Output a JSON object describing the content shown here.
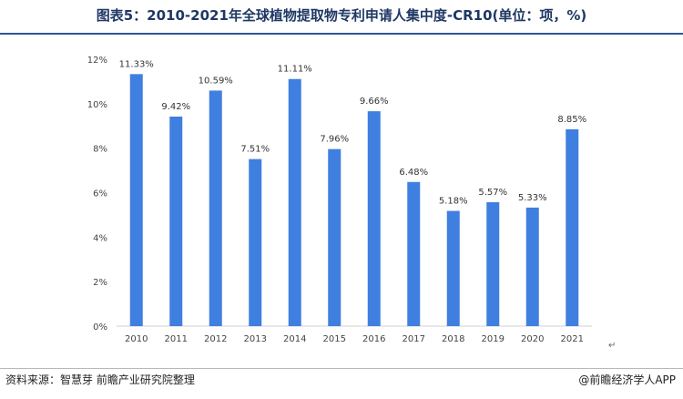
{
  "title": "图表5：2010-2021年全球植物提取物专利申请人集中度-CR10(单位：项，%)",
  "source": "资料来源：智慧芽 前瞻产业研究院整理",
  "brand": "@前瞻经济学人APP",
  "return_mark": "↵",
  "colors": {
    "bar": "#3f7fe0",
    "axis": "#d0d0d0",
    "text": "#444444"
  },
  "chart_data": {
    "type": "bar",
    "categories": [
      "2010",
      "2011",
      "2012",
      "2013",
      "2014",
      "2015",
      "2016",
      "2017",
      "2018",
      "2019",
      "2020",
      "2021"
    ],
    "values": [
      11.33,
      9.42,
      10.59,
      7.51,
      11.11,
      7.96,
      9.66,
      6.48,
      5.18,
      5.57,
      5.33,
      8.85
    ],
    "data_labels": [
      "11.33%",
      "9.42%",
      "10.59%",
      "7.51%",
      "11.11%",
      "7.96%",
      "9.66%",
      "6.48%",
      "5.18%",
      "5.57%",
      "5.33%",
      "8.85%"
    ],
    "y_ticks": [
      0,
      2,
      4,
      6,
      8,
      10,
      12
    ],
    "y_tick_labels": [
      "0%",
      "2%",
      "4%",
      "6%",
      "8%",
      "10%",
      "12%"
    ],
    "ylim": [
      0,
      12
    ],
    "grid": false,
    "legend": "none"
  }
}
